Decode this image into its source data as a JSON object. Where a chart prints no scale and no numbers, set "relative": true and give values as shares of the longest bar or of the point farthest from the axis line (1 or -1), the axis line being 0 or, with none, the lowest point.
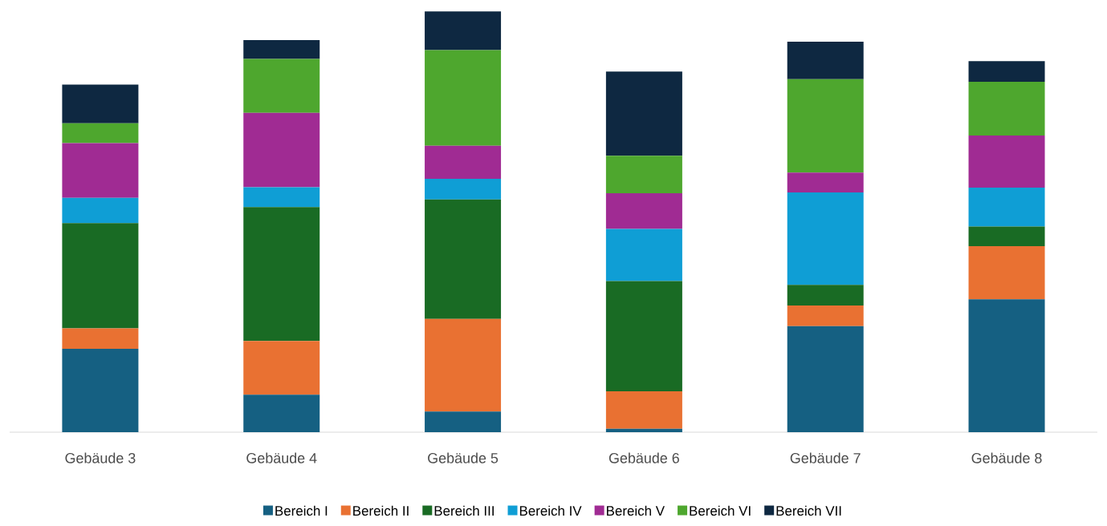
{
  "chart_data": {
    "type": "bar",
    "stacked": true,
    "relative": true,
    "legend": "bottom",
    "categories": [
      "Gebäude 3",
      "Gebäude 4",
      "Gebäude 5",
      "Gebäude 6",
      "Gebäude 7",
      "Gebäude 8"
    ],
    "series": [
      {
        "name": "Bereich I",
        "color": "#156082",
        "values": [
          0.198,
          0.089,
          0.049,
          0.008,
          0.252,
          0.316
        ]
      },
      {
        "name": "Bereich II",
        "color": "#e97132",
        "values": [
          0.049,
          0.128,
          0.22,
          0.089,
          0.049,
          0.126
        ]
      },
      {
        "name": "Bereich III",
        "color": "#196b24",
        "values": [
          0.25,
          0.318,
          0.284,
          0.262,
          0.049,
          0.047
        ]
      },
      {
        "name": "Bereich IV",
        "color": "#0f9ed5",
        "values": [
          0.06,
          0.047,
          0.049,
          0.124,
          0.22,
          0.092
        ]
      },
      {
        "name": "Bereich V",
        "color": "#a02b93",
        "values": [
          0.13,
          0.177,
          0.079,
          0.085,
          0.047,
          0.124
        ]
      },
      {
        "name": "Bereich VI",
        "color": "#4ea72e",
        "values": [
          0.047,
          0.128,
          0.227,
          0.089,
          0.222,
          0.128
        ]
      },
      {
        "name": "Bereich VII",
        "color": "#0e2841",
        "values": [
          0.092,
          0.045,
          0.092,
          0.2,
          0.089,
          0.049
        ]
      }
    ]
  }
}
